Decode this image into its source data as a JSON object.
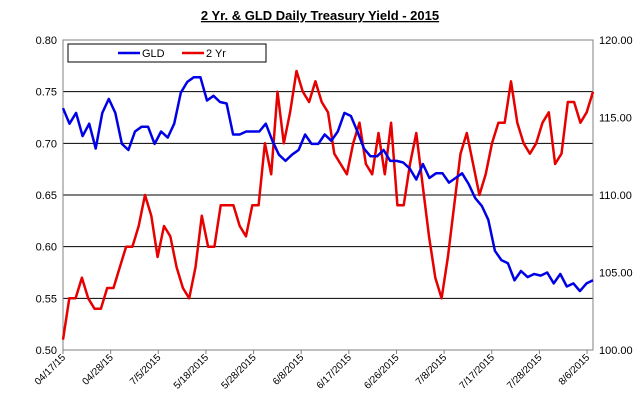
{
  "chart_data": {
    "type": "line",
    "title": "2 Yr. & GLD  Daily Treasury Yield - 2015",
    "xlabel": "",
    "ylabel": "",
    "y_left": {
      "min": 0.5,
      "max": 0.8,
      "ticks": [
        "0.50",
        "0.55",
        "0.60",
        "0.65",
        "0.70",
        "0.75",
        "0.80"
      ]
    },
    "y_right": {
      "min": 100,
      "max": 120,
      "ticks": [
        "100.00",
        "105.00",
        "110.00",
        "115.00",
        "120.00"
      ]
    },
    "grid": "horizontal",
    "legend_position": "top",
    "x_ticks": [
      {
        "label": "04/17/15",
        "index": 0
      },
      {
        "label": "04/28/15",
        "index": 8
      },
      {
        "label": "7/5/2015",
        "index": 16
      },
      {
        "label": "5/18/2015",
        "index": 24
      },
      {
        "label": "5/28/2015",
        "index": 32
      },
      {
        "label": "6/8/2015",
        "index": 40
      },
      {
        "label": "6/17/2015",
        "index": 48
      },
      {
        "label": "6/26/2015",
        "index": 56
      },
      {
        "label": "7/8/2015",
        "index": 64
      },
      {
        "label": "7/17/2015",
        "index": 72
      },
      {
        "label": "7/28/2015",
        "index": 80
      },
      {
        "label": "8/6/2015",
        "index": 88
      }
    ],
    "series": [
      {
        "name": "2 Yr",
        "color": "#e60000",
        "axis": "left",
        "values": [
          0.51,
          0.55,
          0.55,
          0.57,
          0.55,
          0.54,
          0.54,
          0.56,
          0.56,
          0.58,
          0.6,
          0.6,
          0.62,
          0.65,
          0.63,
          0.59,
          0.62,
          0.61,
          0.58,
          0.56,
          0.55,
          0.58,
          0.63,
          0.6,
          0.6,
          0.64,
          0.64,
          0.64,
          0.62,
          0.61,
          0.64,
          0.64,
          0.7,
          0.67,
          0.75,
          0.7,
          0.73,
          0.77,
          0.75,
          0.74,
          0.76,
          0.74,
          0.73,
          0.69,
          0.68,
          0.67,
          0.7,
          0.72,
          0.68,
          0.67,
          0.71,
          0.67,
          0.72,
          0.64,
          0.64,
          0.68,
          0.71,
          0.66,
          0.61,
          0.57,
          0.55,
          0.59,
          0.64,
          0.69,
          0.71,
          0.68,
          0.65,
          0.67,
          0.7,
          0.72,
          0.72,
          0.76,
          0.72,
          0.7,
          0.69,
          0.7,
          0.72,
          0.73,
          0.68,
          0.69,
          0.74,
          0.74,
          0.72,
          0.73,
          0.75
        ]
      },
      {
        "name": "GLD",
        "color": "#0000e6",
        "axis": "right",
        "values": [
          115.6,
          114.6,
          115.3,
          113.8,
          114.6,
          113.0,
          115.3,
          116.2,
          115.3,
          113.3,
          112.9,
          114.1,
          114.4,
          114.4,
          113.3,
          114.1,
          113.7,
          114.6,
          116.6,
          117.3,
          117.6,
          117.6,
          116.1,
          116.4,
          116.0,
          115.9,
          113.9,
          113.9,
          114.1,
          114.1,
          114.1,
          114.6,
          113.5,
          112.6,
          112.2,
          112.6,
          112.9,
          113.9,
          113.3,
          113.3,
          113.9,
          113.5,
          114.1,
          115.3,
          115.1,
          114.1,
          113.0,
          112.5,
          112.5,
          112.9,
          112.2,
          112.2,
          112.1,
          111.7,
          111.0,
          112.0,
          111.1,
          111.4,
          111.4,
          110.8,
          111.1,
          111.4,
          110.7,
          109.8,
          109.3,
          108.4,
          106.4,
          105.8,
          105.6,
          104.5,
          105.1,
          104.7,
          104.9,
          104.8,
          105.0,
          104.3,
          104.9,
          104.1,
          104.3,
          103.8,
          104.3,
          104.5
        ]
      }
    ]
  }
}
